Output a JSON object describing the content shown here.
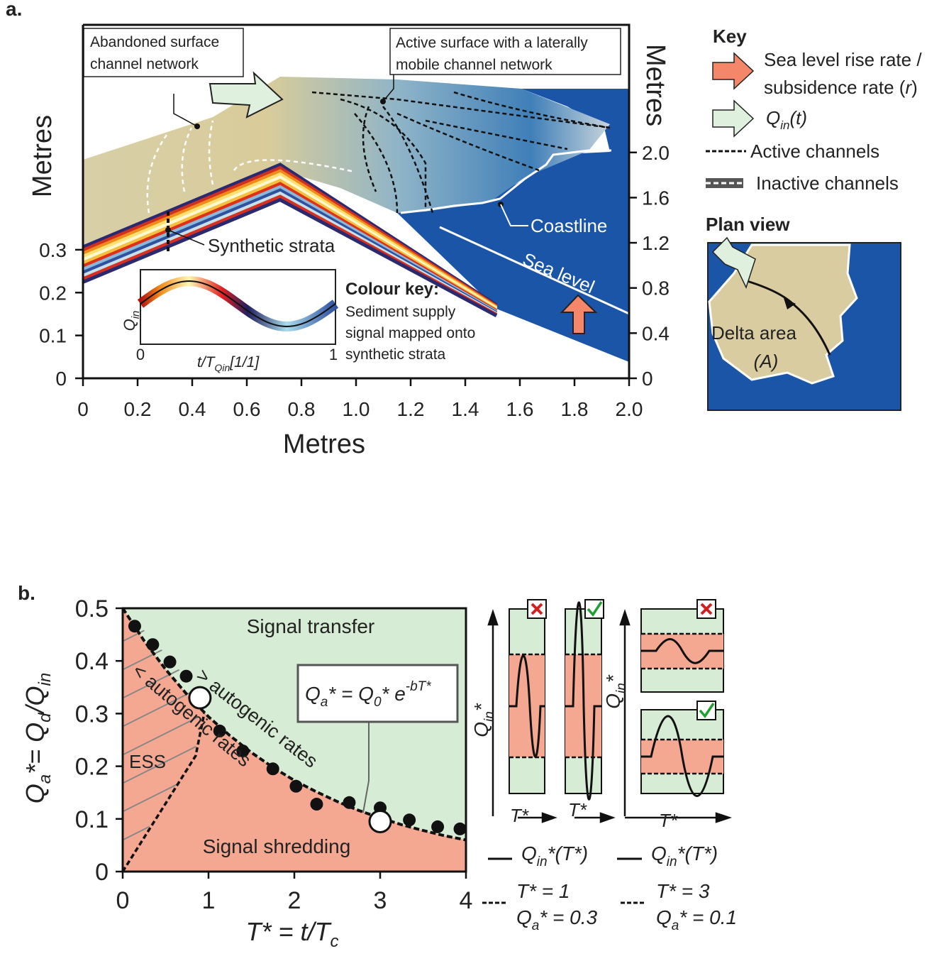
{
  "panel_a": {
    "label": "a.",
    "callout_abandoned": [
      "Abandoned surface",
      "channel network"
    ],
    "callout_active": [
      "Active surface with a laterally",
      "mobile channel network"
    ],
    "synthetic_strata": "Synthetic strata",
    "coastline": "Coastline",
    "sea_level": "Sea level",
    "x_axis": {
      "label": "Metres",
      "xlim": [
        0,
        2
      ],
      "xticks": [
        0,
        0.2,
        0.4,
        0.6,
        0.8,
        {
          "value": 1,
          "label": "1.0"
        },
        1.2,
        1.4,
        1.6,
        1.8,
        {
          "value": 2,
          "label": "2.0"
        }
      ]
    },
    "y_left": {
      "label": "Metres",
      "ylim": [
        0,
        0.825
      ],
      "yticks": [
        0,
        0.1,
        0.2,
        0.3
      ]
    },
    "y_right": {
      "label": "Metres",
      "ylim": [
        0,
        3.13
      ],
      "yticks": [
        0,
        0.4,
        0.8,
        1.2,
        1.6,
        {
          "value": 2,
          "label": "2.0"
        }
      ]
    },
    "colour_key": {
      "title": "Colour key:",
      "lines": [
        "Sediment supply",
        "signal mapped onto",
        "synthetic strata"
      ],
      "y_label": [
        "Q",
        "in"
      ],
      "x_label": [
        "t/T",
        "Qin",
        "[1/1]"
      ],
      "xticks": [
        0,
        1
      ]
    },
    "key": {
      "title": "Key",
      "rise_rate": [
        "Sea level rise rate /",
        "subsidence  rate (",
        "r",
        ")"
      ],
      "q_in": [
        "Q",
        "in",
        "(t)"
      ],
      "active": "Active channels",
      "inactive": "Inactive channels"
    },
    "plan_view": {
      "title": "Plan view",
      "area": "Delta area",
      "area_symbol": "(A)"
    }
  },
  "chart_data": {
    "type": "scatter",
    "label": "b.",
    "x_label": [
      "T* = t/T",
      "c"
    ],
    "y_label": [
      "Q",
      "a",
      "*= Q",
      "d",
      "/Q",
      "in"
    ],
    "xlim": [
      0,
      4
    ],
    "ylim": [
      0,
      0.5
    ],
    "xticks": [
      0,
      1,
      2,
      3,
      4
    ],
    "yticks": [
      0,
      0.1,
      0.2,
      0.3,
      0.4,
      0.5
    ],
    "points": {
      "x": [
        0.14,
        0.35,
        0.55,
        0.74,
        1.13,
        1.4,
        1.75,
        2.02,
        2.26,
        2.64,
        3.0,
        3.34,
        3.67,
        3.93
      ],
      "values": [
        0.466,
        0.431,
        0.398,
        0.371,
        0.267,
        0.229,
        0.195,
        0.162,
        0.128,
        0.131,
        0.121,
        0.098,
        0.085,
        0.081
      ]
    },
    "highlighted": {
      "x": [
        0.9,
        3.0
      ],
      "values": [
        0.33,
        0.095
      ]
    },
    "fit": {
      "x": [
        0,
        0.25,
        0.5,
        0.75,
        1,
        1.25,
        1.5,
        1.75,
        2,
        2.25,
        2.5,
        2.75,
        3,
        3.25,
        3.5,
        3.75,
        4
      ],
      "values": [
        0.5,
        0.438,
        0.384,
        0.336,
        0.294,
        0.258,
        0.226,
        0.198,
        0.173,
        0.152,
        0.133,
        0.116,
        0.102,
        0.089,
        0.078,
        0.068,
        0.06
      ]
    },
    "ess_boundary": {
      "x": [
        0,
        0.85,
        0.95
      ],
      "values": [
        0,
        0.22,
        0.3
      ]
    },
    "regions": {
      "transfer": "Signal transfer",
      "shredding": "Signal shredding",
      "ess": "ESS",
      "above": "> autogenic rates",
      "below": "< autogenic rates"
    },
    "formula": [
      "Q",
      "a",
      "* = Q",
      "0",
      "* e",
      "-bT*"
    ]
  },
  "panel_b_insets": {
    "y_label": [
      "Q",
      "in",
      "*"
    ],
    "x_label": "T*",
    "legend": [
      {
        "line": [
          "Q",
          "in",
          "*(T*)"
        ],
        "case": "T* = 1",
        "qa": [
          "Q",
          "a",
          "* = 0.3"
        ]
      },
      {
        "line": [
          "Q",
          "in",
          "*(T*)"
        ],
        "case": "T* = 3",
        "qa": [
          "Q",
          "a",
          "* = 0.1"
        ]
      }
    ]
  }
}
